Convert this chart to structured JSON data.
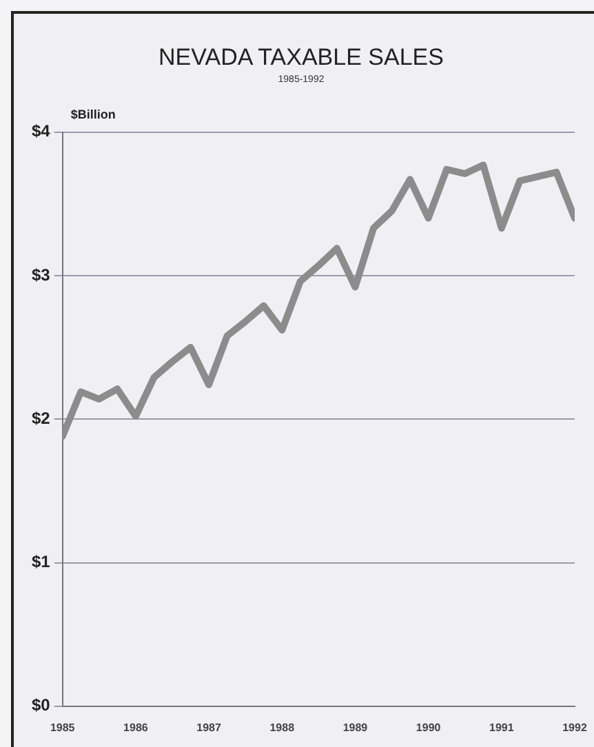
{
  "chart_data": {
    "type": "line",
    "title": "NEVADA TAXABLE SALES",
    "subtitle": "1985-1992",
    "ylabel": "$Billion",
    "x": [
      1985,
      1985.25,
      1985.5,
      1985.75,
      1986,
      1986.25,
      1986.5,
      1986.75,
      1987,
      1987.25,
      1987.5,
      1987.75,
      1988,
      1988.25,
      1988.5,
      1988.75,
      1989,
      1989.25,
      1989.5,
      1989.75,
      1990,
      1990.25,
      1990.5,
      1990.75,
      1991,
      1991.25,
      1991.5,
      1991.75,
      1992
    ],
    "series": [
      {
        "color": "#8c8c8c",
        "values": [
          1.88,
          2.19,
          2.14,
          2.21,
          2.02,
          2.29,
          2.4,
          2.5,
          2.24,
          2.58,
          2.68,
          2.79,
          2.62,
          2.96,
          3.07,
          3.19,
          2.92,
          3.33,
          3.45,
          3.67,
          3.4,
          3.74,
          3.71,
          3.77,
          3.33,
          3.66,
          3.69,
          3.72,
          3.4
        ]
      }
    ],
    "xlim": [
      1985,
      1992
    ],
    "xticks": [
      1985,
      1986,
      1987,
      1988,
      1989,
      1990,
      1991,
      1992
    ],
    "ylim": [
      0,
      4
    ],
    "yticks": [
      {
        "value": 0,
        "label": "$0"
      },
      {
        "value": 1,
        "label": "$1"
      },
      {
        "value": 2,
        "label": "$2"
      },
      {
        "value": 3,
        "label": "$3"
      },
      {
        "value": 4,
        "label": "$4"
      }
    ],
    "grid": "y",
    "legend": false,
    "marker": "none",
    "line_style": "solid"
  }
}
